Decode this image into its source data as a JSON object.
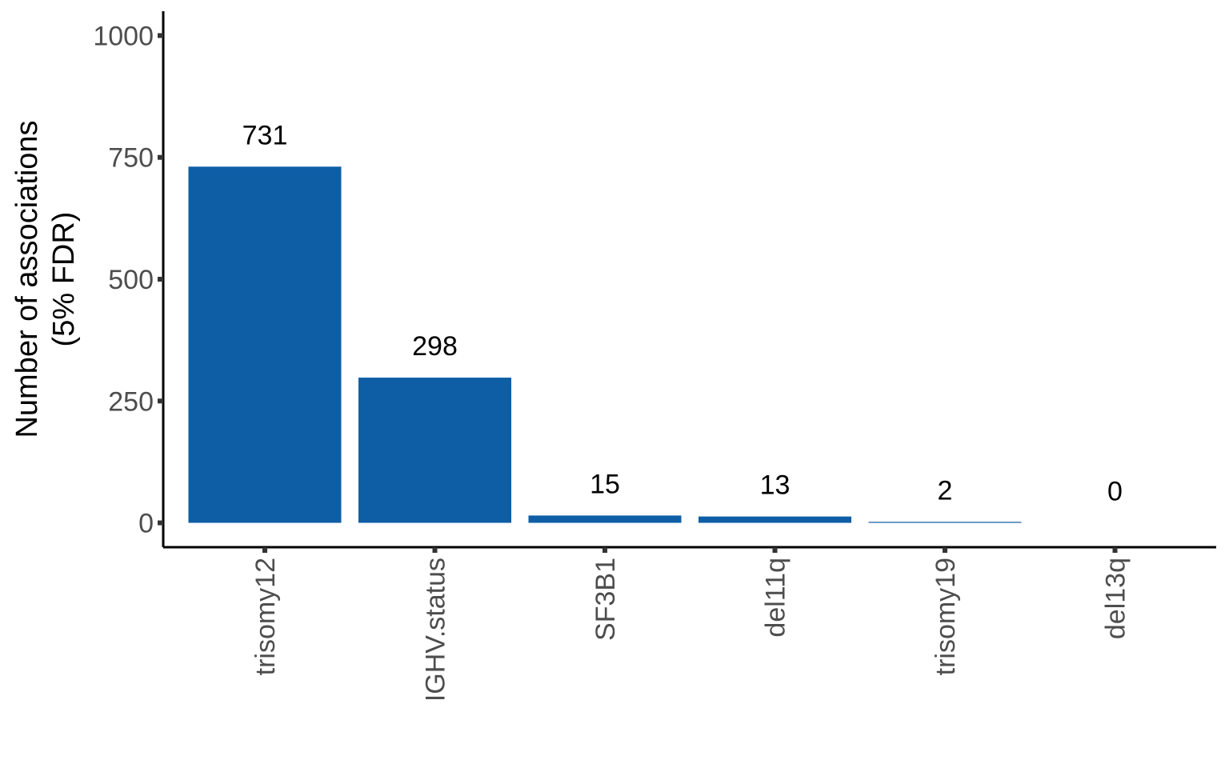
{
  "colors": {
    "bar": "#0E5EA6",
    "axis": "#000000",
    "tick_text": "#4d4d4d",
    "label_text": "#000000",
    "background": "#ffffff"
  },
  "chart_data": {
    "type": "bar",
    "title": "",
    "xlabel": "",
    "ylabel_lines": [
      "Number of associations",
      "(5% FDR)"
    ],
    "categories": [
      "trisomy12",
      "IGHV.status",
      "SF3B1",
      "del11q",
      "trisomy19",
      "del13q"
    ],
    "values": [
      731,
      298,
      15,
      13,
      2,
      0
    ],
    "data_labels": [
      "731",
      "298",
      "15",
      "13",
      "2",
      "0"
    ],
    "ylim": [
      -50,
      1050
    ],
    "yticks": [
      0,
      250,
      500,
      750,
      1000
    ],
    "ytick_labels": [
      "0",
      "250",
      "500",
      "750",
      "1000"
    ],
    "x_tick_label_rotation": "vertical",
    "grid": false,
    "legend": "none"
  }
}
